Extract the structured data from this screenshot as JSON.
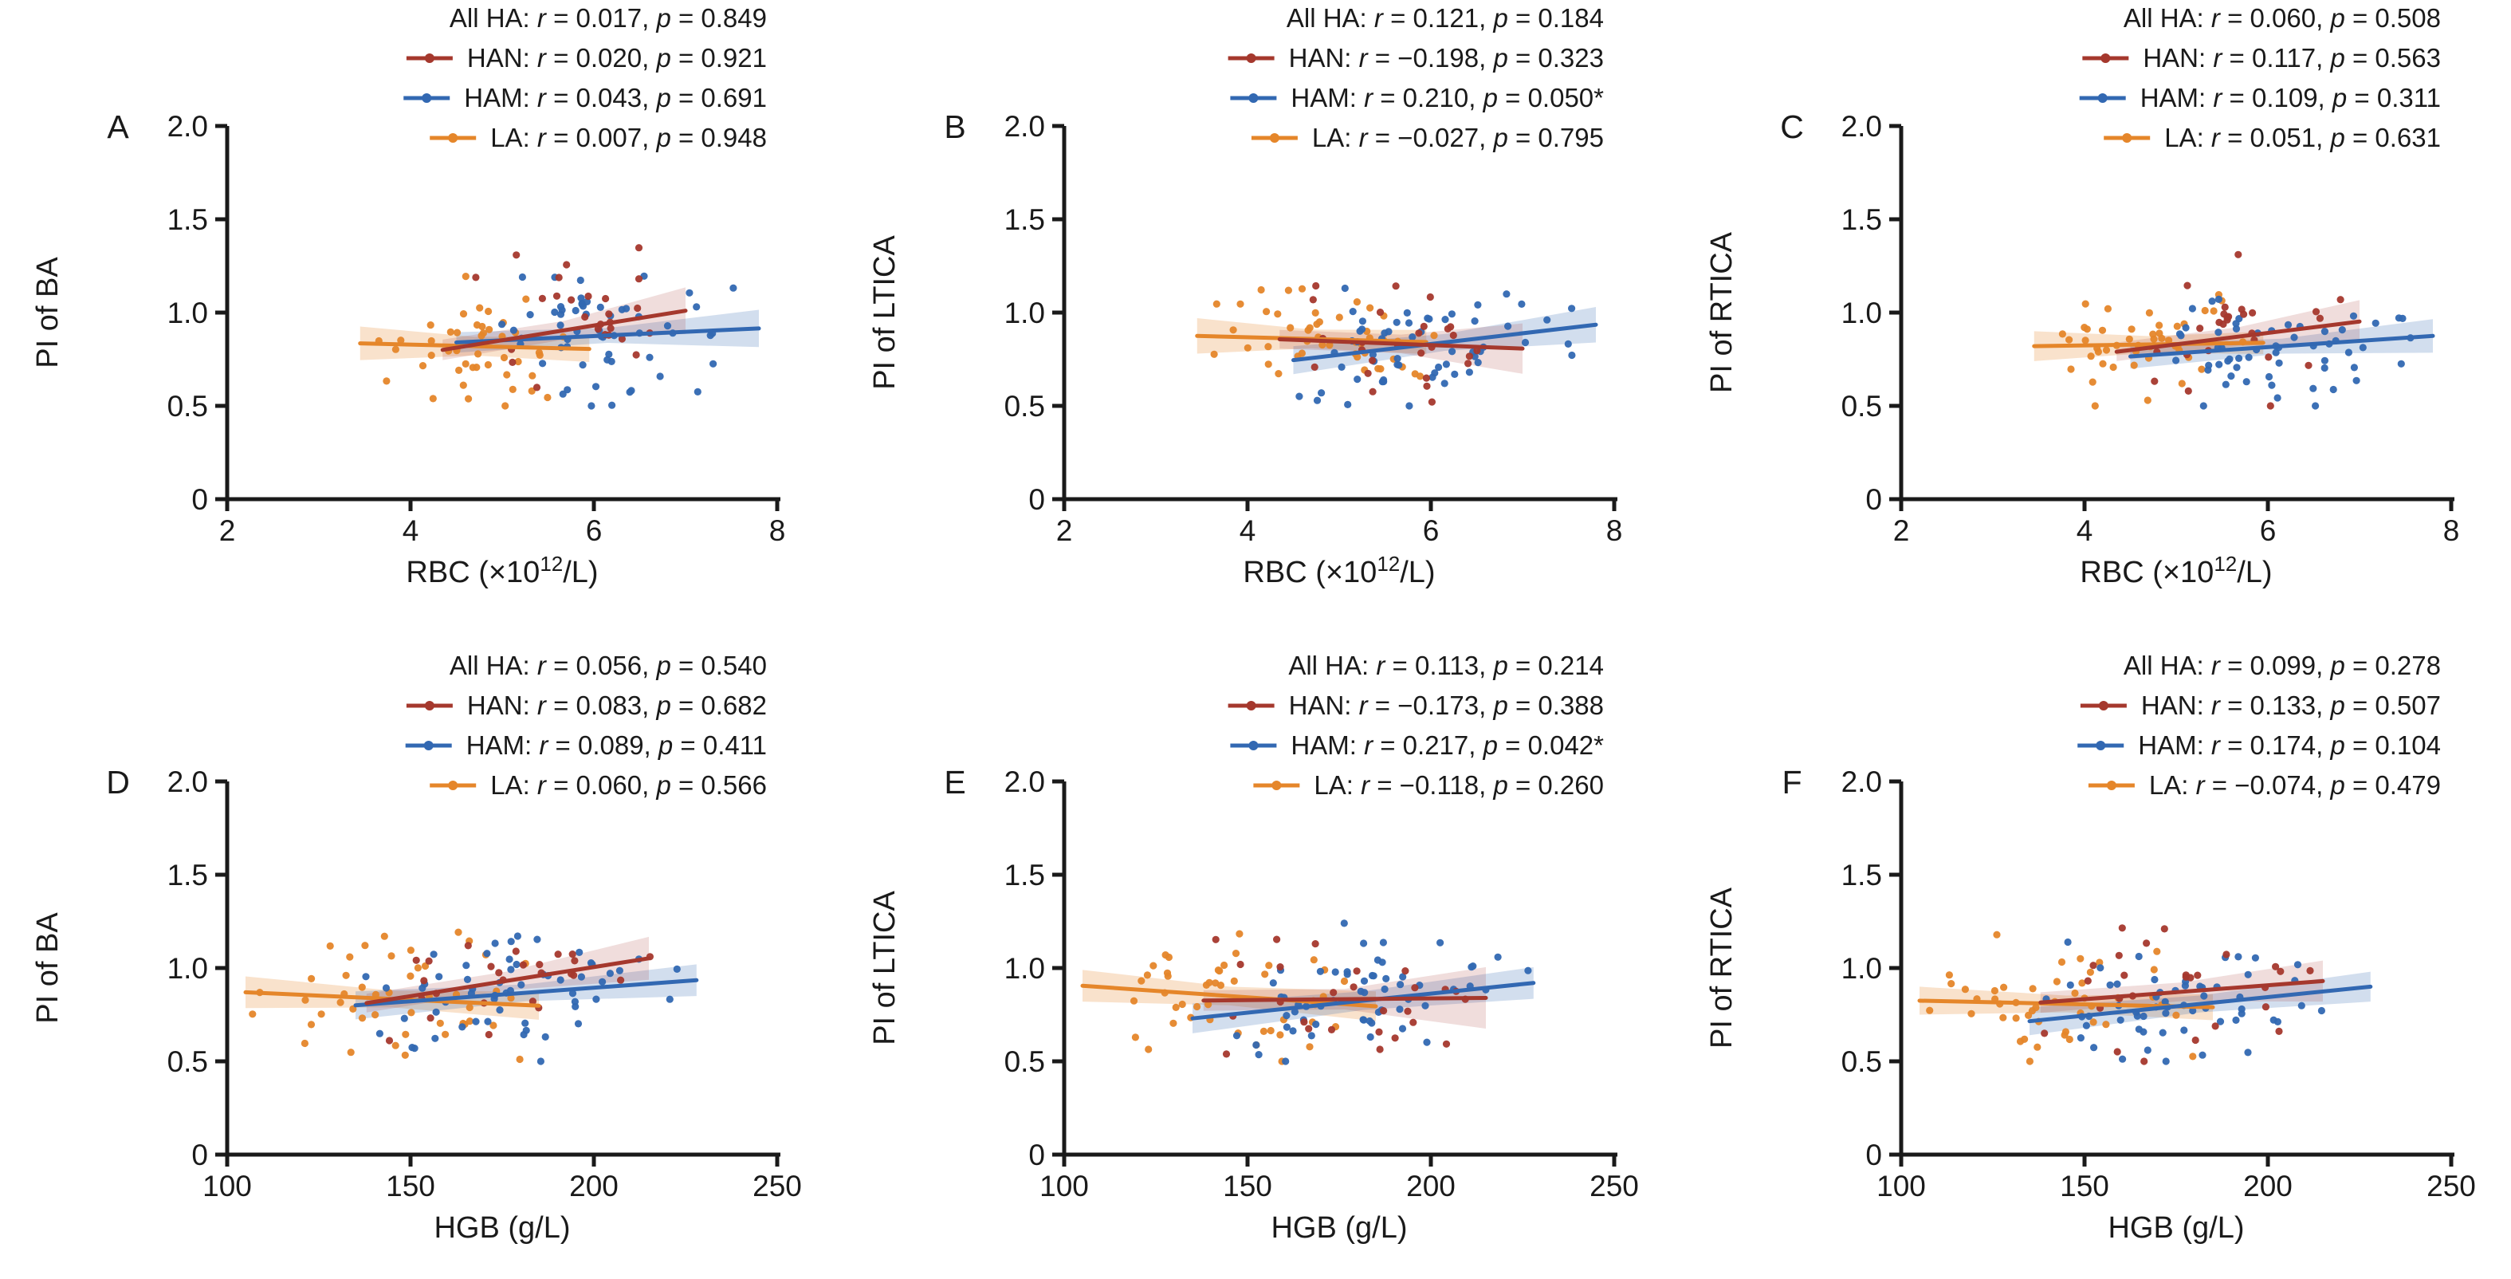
{
  "figure": {
    "background": "#ffffff",
    "axis_color": "#1a1a1a",
    "groups": {
      "all": {
        "label": "All HA",
        "color": null
      },
      "han": {
        "label": "HAN",
        "color": "#a5382d"
      },
      "ham": {
        "label": "HAM",
        "color": "#3268b2"
      },
      "la": {
        "label": "LA",
        "color": "#e5862a"
      }
    },
    "band_colors": {
      "han": "rgba(165,56,45,0.17)",
      "ham": "rgba(50,104,178,0.22)",
      "la": "rgba(229,134,42,0.24)"
    }
  },
  "chart_data": [
    {
      "panel": "A",
      "type": "scatter",
      "row": 0,
      "ylabel": "PI of BA",
      "xlabel_parts": [
        {
          "t": "RBC (×10"
        },
        {
          "t": "12",
          "sup": true
        },
        {
          "t": "/L)"
        }
      ],
      "xlim": [
        2,
        8
      ],
      "xticks": [
        {
          "v": 2,
          "t": "2"
        },
        {
          "v": 4,
          "t": "4"
        },
        {
          "v": 6,
          "t": "6"
        },
        {
          "v": 8,
          "t": "8"
        }
      ],
      "ylim": [
        0,
        2
      ],
      "yticks": [
        {
          "v": 0,
          "t": "0"
        },
        {
          "v": 0.5,
          "t": "0.5"
        },
        {
          "v": 1,
          "t": "1.0"
        },
        {
          "v": 1.5,
          "t": "1.5"
        },
        {
          "v": 2,
          "t": "2.0"
        }
      ],
      "legend": [
        {
          "group": "all",
          "r": "0.017",
          "p": "0.849"
        },
        {
          "group": "han",
          "r": "0.020",
          "p": "0.921"
        },
        {
          "group": "ham",
          "r": "0.043",
          "p": "0.691"
        },
        {
          "group": "la",
          "r": "0.007",
          "p": "0.948"
        }
      ],
      "series": [
        {
          "group": "la",
          "n": 46,
          "seed": 11,
          "x_range": [
            3.4,
            6.1
          ],
          "y_sd": 0.155,
          "trend": {
            "x": [
              3.45,
              5.95
            ],
            "y": [
              0.835,
              0.805
            ]
          },
          "band": [
            0.09,
            0.05,
            0.07
          ]
        },
        {
          "group": "ham",
          "n": 58,
          "seed": 12,
          "x_range": [
            4.45,
            7.8
          ],
          "y_sd": 0.16,
          "trend": {
            "x": [
              4.5,
              7.8
            ],
            "y": [
              0.84,
              0.915
            ]
          },
          "band": [
            0.055,
            0.04,
            0.1
          ]
        },
        {
          "group": "han",
          "n": 26,
          "seed": 13,
          "x_range": [
            4.3,
            7.0
          ],
          "y_sd": 0.16,
          "trend": {
            "x": [
              4.35,
              7.0
            ],
            "y": [
              0.8,
              1.01
            ]
          },
          "band": [
            0.055,
            0.05,
            0.125
          ]
        }
      ]
    },
    {
      "panel": "B",
      "type": "scatter",
      "row": 0,
      "ylabel": "PI of LTICA",
      "xlabel_parts": [
        {
          "t": "RBC (×10"
        },
        {
          "t": "12",
          "sup": true
        },
        {
          "t": "/L)"
        }
      ],
      "xlim": [
        2,
        8
      ],
      "xticks": [
        {
          "v": 2,
          "t": "2"
        },
        {
          "v": 4,
          "t": "4"
        },
        {
          "v": 6,
          "t": "6"
        },
        {
          "v": 8,
          "t": "8"
        }
      ],
      "ylim": [
        0,
        2
      ],
      "yticks": [
        {
          "v": 0,
          "t": "0"
        },
        {
          "v": 0.5,
          "t": "0.5"
        },
        {
          "v": 1,
          "t": "1.0"
        },
        {
          "v": 1.5,
          "t": "1.5"
        },
        {
          "v": 2,
          "t": "2.0"
        }
      ],
      "legend": [
        {
          "group": "all",
          "r": "0.121",
          "p": "0.184"
        },
        {
          "group": "han",
          "r": "−0.198",
          "p": "0.323"
        },
        {
          "group": "ham",
          "r": "0.210",
          "p": "0.050*"
        },
        {
          "group": "la",
          "r": "−0.027",
          "p": "0.795"
        }
      ],
      "series": [
        {
          "group": "la",
          "n": 46,
          "seed": 21,
          "x_range": [
            3.4,
            6.1
          ],
          "y_sd": 0.155,
          "trend": {
            "x": [
              3.45,
              5.95
            ],
            "y": [
              0.875,
              0.842
            ]
          },
          "band": [
            0.095,
            0.05,
            0.065
          ]
        },
        {
          "group": "ham",
          "n": 58,
          "seed": 22,
          "x_range": [
            4.45,
            7.8
          ],
          "y_sd": 0.16,
          "trend": {
            "x": [
              4.5,
              7.8
            ],
            "y": [
              0.745,
              0.935
            ]
          },
          "band": [
            0.075,
            0.045,
            0.095
          ]
        },
        {
          "group": "han",
          "n": 26,
          "seed": 23,
          "x_range": [
            4.3,
            7.0
          ],
          "y_sd": 0.16,
          "trend": {
            "x": [
              4.35,
              7.0
            ],
            "y": [
              0.857,
              0.807
            ]
          },
          "band": [
            0.05,
            0.05,
            0.135
          ]
        }
      ]
    },
    {
      "panel": "C",
      "type": "scatter",
      "row": 0,
      "ylabel": "PI of RTICA",
      "xlabel_parts": [
        {
          "t": "RBC (×10"
        },
        {
          "t": "12",
          "sup": true
        },
        {
          "t": "/L)"
        }
      ],
      "xlim": [
        2,
        8
      ],
      "xticks": [
        {
          "v": 2,
          "t": "2"
        },
        {
          "v": 4,
          "t": "4"
        },
        {
          "v": 6,
          "t": "6"
        },
        {
          "v": 8,
          "t": "8"
        }
      ],
      "ylim": [
        0,
        2
      ],
      "yticks": [
        {
          "v": 0,
          "t": "0"
        },
        {
          "v": 0.5,
          "t": "0.5"
        },
        {
          "v": 1,
          "t": "1.0"
        },
        {
          "v": 1.5,
          "t": "1.5"
        },
        {
          "v": 2,
          "t": "2.0"
        }
      ],
      "legend": [
        {
          "group": "all",
          "r": "0.060",
          "p": "0.508"
        },
        {
          "group": "han",
          "r": "0.117",
          "p": "0.563"
        },
        {
          "group": "ham",
          "r": "0.109",
          "p": "0.311"
        },
        {
          "group": "la",
          "r": "0.051",
          "p": "0.631"
        }
      ],
      "series": [
        {
          "group": "la",
          "n": 46,
          "seed": 31,
          "x_range": [
            3.4,
            6.1
          ],
          "y_sd": 0.15,
          "trend": {
            "x": [
              3.45,
              5.95
            ],
            "y": [
              0.82,
              0.838
            ]
          },
          "band": [
            0.08,
            0.045,
            0.06
          ]
        },
        {
          "group": "ham",
          "n": 58,
          "seed": 32,
          "x_range": [
            4.45,
            7.8
          ],
          "y_sd": 0.155,
          "trend": {
            "x": [
              4.5,
              7.8
            ],
            "y": [
              0.765,
              0.875
            ]
          },
          "band": [
            0.065,
            0.04,
            0.09
          ]
        },
        {
          "group": "han",
          "n": 26,
          "seed": 33,
          "x_range": [
            4.3,
            7.0
          ],
          "y_sd": 0.16,
          "trend": {
            "x": [
              4.35,
              7.0
            ],
            "y": [
              0.79,
              0.952
            ]
          },
          "band": [
            0.05,
            0.05,
            0.115
          ]
        }
      ]
    },
    {
      "panel": "D",
      "type": "scatter",
      "row": 1,
      "ylabel": "PI of BA",
      "xlabel_parts": [
        {
          "t": "HGB (g/L)"
        }
      ],
      "xlim": [
        100,
        250
      ],
      "xticks": [
        {
          "v": 100,
          "t": "100"
        },
        {
          "v": 150,
          "t": "150"
        },
        {
          "v": 200,
          "t": "200"
        },
        {
          "v": 250,
          "t": "250"
        }
      ],
      "ylim": [
        0,
        2
      ],
      "yticks": [
        {
          "v": 0,
          "t": "0"
        },
        {
          "v": 0.5,
          "t": "0.5"
        },
        {
          "v": 1,
          "t": "1.0"
        },
        {
          "v": 1.5,
          "t": "1.5"
        },
        {
          "v": 2,
          "t": "2.0"
        }
      ],
      "legend": [
        {
          "group": "all",
          "r": "0.056",
          "p": "0.540"
        },
        {
          "group": "han",
          "r": "0.083",
          "p": "0.682"
        },
        {
          "group": "ham",
          "r": "0.089",
          "p": "0.411"
        },
        {
          "group": "la",
          "r": "0.060",
          "p": "0.566"
        }
      ],
      "series": [
        {
          "group": "la",
          "n": 46,
          "seed": 41,
          "x_range": [
            104,
            186
          ],
          "y_sd": 0.155,
          "trend": {
            "x": [
              105,
              185
            ],
            "y": [
              0.87,
              0.798
            ]
          },
          "band": [
            0.085,
            0.045,
            0.075
          ]
        },
        {
          "group": "ham",
          "n": 58,
          "seed": 42,
          "x_range": [
            133,
            228
          ],
          "y_sd": 0.155,
          "trend": {
            "x": [
              135,
              228
            ],
            "y": [
              0.8,
              0.935
            ]
          },
          "band": [
            0.075,
            0.045,
            0.085
          ]
        },
        {
          "group": "han",
          "n": 26,
          "seed": 43,
          "x_range": [
            137,
            216
          ],
          "y_sd": 0.16,
          "trend": {
            "x": [
              138,
              215
            ],
            "y": [
              0.812,
              1.052
            ]
          },
          "band": [
            0.05,
            0.05,
            0.115
          ]
        }
      ]
    },
    {
      "panel": "E",
      "type": "scatter",
      "row": 1,
      "ylabel": "PI of LTICA",
      "xlabel_parts": [
        {
          "t": "HGB (g/L)"
        }
      ],
      "xlim": [
        100,
        250
      ],
      "xticks": [
        {
          "v": 100,
          "t": "100"
        },
        {
          "v": 150,
          "t": "150"
        },
        {
          "v": 200,
          "t": "200"
        },
        {
          "v": 250,
          "t": "250"
        }
      ],
      "ylim": [
        0,
        2
      ],
      "yticks": [
        {
          "v": 0,
          "t": "0"
        },
        {
          "v": 0.5,
          "t": "0.5"
        },
        {
          "v": 1,
          "t": "1.0"
        },
        {
          "v": 1.5,
          "t": "1.5"
        },
        {
          "v": 2,
          "t": "2.0"
        }
      ],
      "legend": [
        {
          "group": "all",
          "r": "0.113",
          "p": "0.214"
        },
        {
          "group": "han",
          "r": "−0.173",
          "p": "0.388"
        },
        {
          "group": "ham",
          "r": "0.217",
          "p": "0.042*"
        },
        {
          "group": "la",
          "r": "−0.118",
          "p": "0.260"
        }
      ],
      "series": [
        {
          "group": "la",
          "n": 46,
          "seed": 51,
          "x_range": [
            104,
            186
          ],
          "y_sd": 0.155,
          "trend": {
            "x": [
              105,
              185
            ],
            "y": [
              0.905,
              0.795
            ]
          },
          "band": [
            0.085,
            0.05,
            0.08
          ]
        },
        {
          "group": "ham",
          "n": 58,
          "seed": 52,
          "x_range": [
            133,
            228
          ],
          "y_sd": 0.155,
          "trend": {
            "x": [
              135,
              228
            ],
            "y": [
              0.73,
              0.92
            ]
          },
          "band": [
            0.08,
            0.05,
            0.085
          ]
        },
        {
          "group": "han",
          "n": 26,
          "seed": 53,
          "x_range": [
            137,
            216
          ],
          "y_sd": 0.155,
          "trend": {
            "x": [
              138,
              215
            ],
            "y": [
              0.826,
              0.84
            ]
          },
          "band": [
            0.055,
            0.055,
            0.165
          ]
        }
      ]
    },
    {
      "panel": "F",
      "type": "scatter",
      "row": 1,
      "ylabel": "PI of RTICA",
      "xlabel_parts": [
        {
          "t": "HGB (g/L)"
        }
      ],
      "xlim": [
        100,
        250
      ],
      "xticks": [
        {
          "v": 100,
          "t": "100"
        },
        {
          "v": 150,
          "t": "150"
        },
        {
          "v": 200,
          "t": "200"
        },
        {
          "v": 250,
          "t": "250"
        }
      ],
      "ylim": [
        0,
        2
      ],
      "yticks": [
        {
          "v": 0,
          "t": "0"
        },
        {
          "v": 0.5,
          "t": "0.5"
        },
        {
          "v": 1,
          "t": "1.0"
        },
        {
          "v": 1.5,
          "t": "1.5"
        },
        {
          "v": 2,
          "t": "2.0"
        }
      ],
      "legend": [
        {
          "group": "all",
          "r": "0.099",
          "p": "0.278"
        },
        {
          "group": "han",
          "r": "0.133",
          "p": "0.507"
        },
        {
          "group": "ham",
          "r": "0.174",
          "p": "0.104"
        },
        {
          "group": "la",
          "r": "−0.074",
          "p": "0.479"
        }
      ],
      "series": [
        {
          "group": "la",
          "n": 46,
          "seed": 61,
          "x_range": [
            104,
            186
          ],
          "y_sd": 0.15,
          "trend": {
            "x": [
              105,
              185
            ],
            "y": [
              0.825,
              0.79
            ]
          },
          "band": [
            0.075,
            0.045,
            0.07
          ]
        },
        {
          "group": "ham",
          "n": 58,
          "seed": 62,
          "x_range": [
            133,
            228
          ],
          "y_sd": 0.155,
          "trend": {
            "x": [
              135,
              228
            ],
            "y": [
              0.715,
              0.9
            ]
          },
          "band": [
            0.075,
            0.045,
            0.08
          ]
        },
        {
          "group": "han",
          "n": 26,
          "seed": 63,
          "x_range": [
            137,
            216
          ],
          "y_sd": 0.16,
          "trend": {
            "x": [
              138,
              215
            ],
            "y": [
              0.815,
              0.93
            ]
          },
          "band": [
            0.055,
            0.05,
            0.11
          ]
        }
      ]
    }
  ]
}
